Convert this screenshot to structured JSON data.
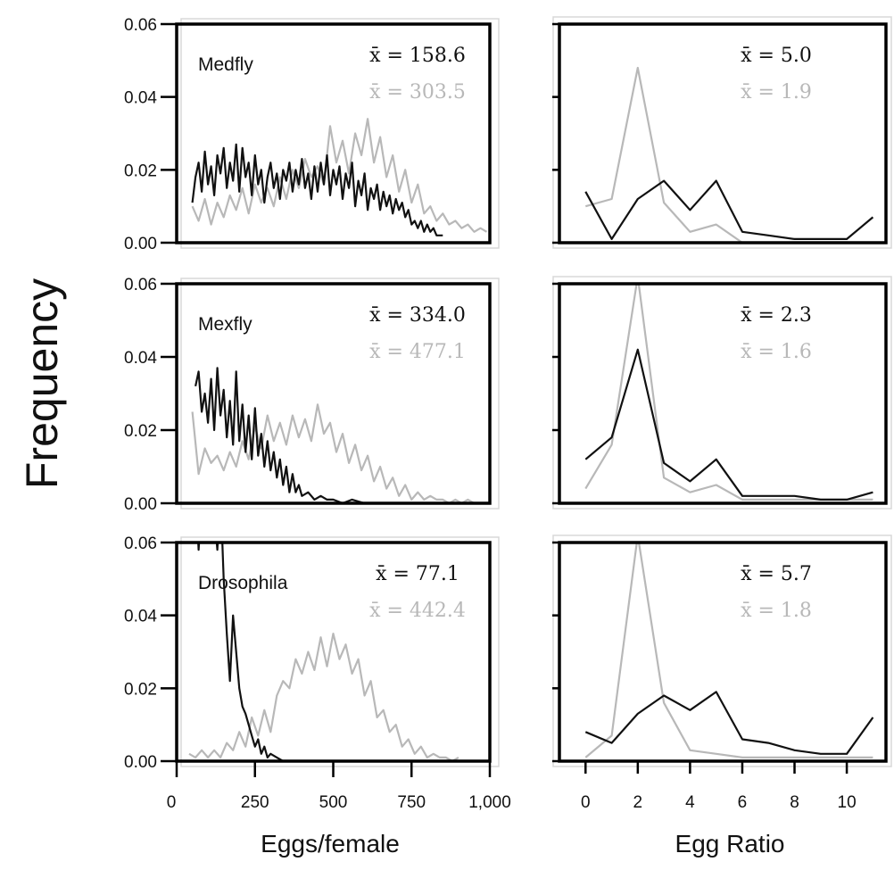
{
  "chart_data": {
    "y_axis_label": "Frequency",
    "colors": {
      "black_series": "#111111",
      "gray_series": "#b8b8b8"
    },
    "left_column": {
      "type": "line",
      "xlabel": "Eggs/female",
      "xlim": [
        0,
        1000
      ],
      "ylim": [
        0,
        0.06
      ],
      "x_ticks": [
        "0",
        "250",
        "500",
        "750",
        "1,000"
      ],
      "y_ticks": [
        "0.00",
        "0.02",
        "0.04",
        "0.06"
      ]
    },
    "right_column": {
      "type": "line",
      "xlabel": "Egg Ratio",
      "xlim": [
        -1,
        11.5
      ],
      "ylim": [
        0,
        0.06
      ],
      "x_ticks": [
        "0",
        "2",
        "4",
        "6",
        "8",
        "10"
      ]
    },
    "panels": [
      {
        "species": "Medfly",
        "eggs": {
          "mean_black": "x̄ = 158.6",
          "mean_gray": "x̄ = 303.5",
          "black": {
            "x": [
              50,
              60,
              70,
              80,
              90,
              100,
              110,
              120,
              130,
              140,
              150,
              160,
              170,
              180,
              190,
              200,
              210,
              220,
              230,
              240,
              250,
              260,
              270,
              280,
              290,
              300,
              310,
              320,
              330,
              340,
              350,
              360,
              370,
              380,
              390,
              400,
              410,
              420,
              430,
              440,
              450,
              460,
              470,
              480,
              490,
              500,
              510,
              520,
              530,
              540,
              550,
              560,
              570,
              580,
              590,
              600,
              610,
              620,
              630,
              640,
              650,
              660,
              670,
              680,
              690,
              700,
              710,
              720,
              730,
              740,
              750,
              760,
              770,
              780,
              790,
              800,
              810,
              820,
              830,
              840,
              850
            ],
            "y": [
              0.011,
              0.018,
              0.022,
              0.014,
              0.025,
              0.016,
              0.021,
              0.013,
              0.024,
              0.019,
              0.026,
              0.015,
              0.022,
              0.017,
              0.027,
              0.014,
              0.026,
              0.018,
              0.022,
              0.013,
              0.024,
              0.016,
              0.02,
              0.011,
              0.018,
              0.022,
              0.015,
              0.019,
              0.012,
              0.02,
              0.017,
              0.022,
              0.014,
              0.02,
              0.016,
              0.023,
              0.015,
              0.019,
              0.012,
              0.021,
              0.014,
              0.022,
              0.016,
              0.024,
              0.013,
              0.02,
              0.016,
              0.021,
              0.012,
              0.019,
              0.015,
              0.022,
              0.01,
              0.017,
              0.013,
              0.019,
              0.009,
              0.015,
              0.012,
              0.016,
              0.009,
              0.014,
              0.01,
              0.013,
              0.008,
              0.012,
              0.009,
              0.011,
              0.007,
              0.009,
              0.005,
              0.006,
              0.004,
              0.006,
              0.003,
              0.005,
              0.003,
              0.004,
              0.002,
              0.002,
              0.002
            ]
          },
          "gray": {
            "x": [
              50,
              70,
              90,
              110,
              130,
              150,
              170,
              190,
              210,
              230,
              250,
              270,
              290,
              310,
              330,
              350,
              370,
              390,
              410,
              430,
              450,
              470,
              490,
              510,
              530,
              550,
              570,
              590,
              610,
              630,
              650,
              670,
              690,
              710,
              730,
              750,
              770,
              790,
              810,
              830,
              850,
              870,
              890,
              910,
              930,
              950,
              970,
              990
            ],
            "y": [
              0.01,
              0.006,
              0.012,
              0.005,
              0.011,
              0.007,
              0.013,
              0.009,
              0.015,
              0.008,
              0.016,
              0.011,
              0.015,
              0.01,
              0.018,
              0.012,
              0.02,
              0.015,
              0.023,
              0.018,
              0.021,
              0.016,
              0.032,
              0.022,
              0.028,
              0.019,
              0.03,
              0.024,
              0.034,
              0.022,
              0.029,
              0.018,
              0.024,
              0.014,
              0.02,
              0.011,
              0.016,
              0.008,
              0.01,
              0.006,
              0.008,
              0.005,
              0.006,
              0.004,
              0.005,
              0.003,
              0.004,
              0.003
            ]
          }
        },
        "ratio": {
          "mean_black": "x̄ = 5.0",
          "mean_gray": "x̄ = 1.9",
          "black": {
            "x": [
              0,
              1,
              2,
              3,
              4,
              5,
              6,
              7,
              8,
              9,
              10,
              11
            ],
            "y": [
              0.014,
              0.001,
              0.012,
              0.017,
              0.009,
              0.017,
              0.003,
              0.002,
              0.001,
              0.001,
              0.001,
              0.007
            ]
          },
          "gray": {
            "x": [
              0,
              1,
              2,
              3,
              4,
              5,
              6
            ],
            "y": [
              0.01,
              0.012,
              0.048,
              0.011,
              0.003,
              0.005,
              0.0
            ]
          }
        }
      },
      {
        "species": "Mexfly",
        "eggs": {
          "mean_black": "x̄ = 334.0",
          "mean_gray": "x̄ = 477.1",
          "black": {
            "x": [
              60,
              70,
              80,
              90,
              100,
              110,
              120,
              130,
              140,
              150,
              160,
              170,
              180,
              190,
              200,
              210,
              220,
              230,
              240,
              250,
              260,
              270,
              280,
              290,
              300,
              310,
              320,
              330,
              340,
              350,
              360,
              370,
              380,
              390,
              400,
              420,
              440,
              460,
              480,
              500,
              530,
              560,
              600,
              640,
              680,
              720,
              760
            ],
            "y": [
              0.032,
              0.036,
              0.025,
              0.03,
              0.022,
              0.034,
              0.02,
              0.037,
              0.024,
              0.031,
              0.018,
              0.028,
              0.016,
              0.036,
              0.017,
              0.027,
              0.014,
              0.024,
              0.012,
              0.026,
              0.013,
              0.019,
              0.01,
              0.017,
              0.009,
              0.014,
              0.007,
              0.012,
              0.005,
              0.01,
              0.003,
              0.008,
              0.003,
              0.005,
              0.002,
              0.003,
              0.001,
              0.002,
              0.001,
              0.001,
              0.0,
              0.001,
              0.0,
              0.0,
              0.0,
              0.0,
              0.0
            ]
          },
          "gray": {
            "x": [
              50,
              70,
              90,
              110,
              130,
              150,
              170,
              190,
              210,
              230,
              250,
              270,
              290,
              310,
              330,
              350,
              370,
              390,
              410,
              430,
              450,
              470,
              490,
              510,
              530,
              550,
              570,
              590,
              610,
              630,
              650,
              670,
              690,
              710,
              730,
              750,
              770,
              790,
              810,
              830,
              850,
              870,
              890,
              910,
              930,
              950,
              970
            ],
            "y": [
              0.025,
              0.008,
              0.015,
              0.011,
              0.013,
              0.009,
              0.014,
              0.01,
              0.017,
              0.012,
              0.021,
              0.015,
              0.024,
              0.017,
              0.022,
              0.016,
              0.024,
              0.018,
              0.023,
              0.017,
              0.027,
              0.019,
              0.022,
              0.014,
              0.019,
              0.011,
              0.016,
              0.009,
              0.013,
              0.006,
              0.01,
              0.004,
              0.007,
              0.002,
              0.005,
              0.001,
              0.003,
              0.001,
              0.002,
              0.001,
              0.001,
              0.0,
              0.001,
              0.0,
              0.001,
              0.0,
              0.0
            ]
          }
        },
        "ratio": {
          "mean_black": "x̄ = 2.3",
          "mean_gray": "x̄ = 1.6",
          "black": {
            "x": [
              0,
              1,
              2,
              3,
              4,
              5,
              6,
              7,
              8,
              9,
              10,
              11
            ],
            "y": [
              0.012,
              0.018,
              0.042,
              0.011,
              0.006,
              0.012,
              0.002,
              0.002,
              0.002,
              0.001,
              0.001,
              0.003
            ]
          },
          "gray": {
            "x": [
              0,
              1,
              2,
              3,
              4,
              5,
              6,
              7,
              8,
              9,
              10,
              11
            ],
            "y": [
              0.004,
              0.016,
              0.062,
              0.007,
              0.003,
              0.005,
              0.001,
              0.001,
              0.001,
              0.001,
              0.001,
              0.001
            ]
          }
        }
      },
      {
        "species": "Drosophila",
        "eggs": {
          "mean_black": "x̄ = 77.1",
          "mean_gray": "x̄ = 442.4",
          "black": {
            "x": [
              60,
              70,
              80,
              90,
              100,
              110,
              120,
              130,
              140,
              150,
              160,
              170,
              180,
              190,
              200,
              210,
              220,
              230,
              240,
              250,
              260,
              270,
              280,
              290,
              300,
              320,
              340,
              360,
              380,
              400
            ],
            "y": [
              0.075,
              0.058,
              0.072,
              0.06,
              0.075,
              0.061,
              0.068,
              0.058,
              0.074,
              0.05,
              0.035,
              0.022,
              0.04,
              0.03,
              0.02,
              0.015,
              0.013,
              0.01,
              0.007,
              0.004,
              0.006,
              0.002,
              0.004,
              0.001,
              0.002,
              0.001,
              0.0,
              0.0,
              0.0,
              0.0
            ]
          },
          "gray": {
            "x": [
              40,
              60,
              80,
              100,
              120,
              140,
              160,
              180,
              200,
              220,
              240,
              260,
              280,
              300,
              320,
              340,
              360,
              380,
              400,
              420,
              440,
              460,
              480,
              500,
              520,
              540,
              560,
              580,
              600,
              620,
              640,
              660,
              680,
              700,
              720,
              740,
              760,
              780,
              800,
              820,
              840,
              860,
              880,
              900
            ],
            "y": [
              0.002,
              0.001,
              0.003,
              0.001,
              0.003,
              0.001,
              0.005,
              0.003,
              0.008,
              0.004,
              0.012,
              0.007,
              0.014,
              0.008,
              0.018,
              0.022,
              0.02,
              0.028,
              0.024,
              0.03,
              0.025,
              0.034,
              0.026,
              0.035,
              0.028,
              0.032,
              0.024,
              0.028,
              0.018,
              0.022,
              0.012,
              0.014,
              0.008,
              0.01,
              0.004,
              0.006,
              0.002,
              0.004,
              0.001,
              0.002,
              0.001,
              0.001,
              0.0,
              0.001
            ]
          }
        },
        "ratio": {
          "mean_black": "x̄ = 5.7",
          "mean_gray": "x̄ = 1.8",
          "black": {
            "x": [
              0,
              1,
              2,
              3,
              4,
              5,
              6,
              7,
              8,
              9,
              10,
              11
            ],
            "y": [
              0.008,
              0.005,
              0.013,
              0.018,
              0.014,
              0.019,
              0.006,
              0.005,
              0.003,
              0.002,
              0.002,
              0.012
            ]
          },
          "gray": {
            "x": [
              0,
              1,
              2,
              3,
              4,
              5,
              6,
              7,
              8,
              9,
              10,
              11
            ],
            "y": [
              0.001,
              0.007,
              0.062,
              0.016,
              0.003,
              0.002,
              0.001,
              0.001,
              0.001,
              0.001,
              0.001,
              0.001
            ]
          }
        }
      }
    ]
  }
}
